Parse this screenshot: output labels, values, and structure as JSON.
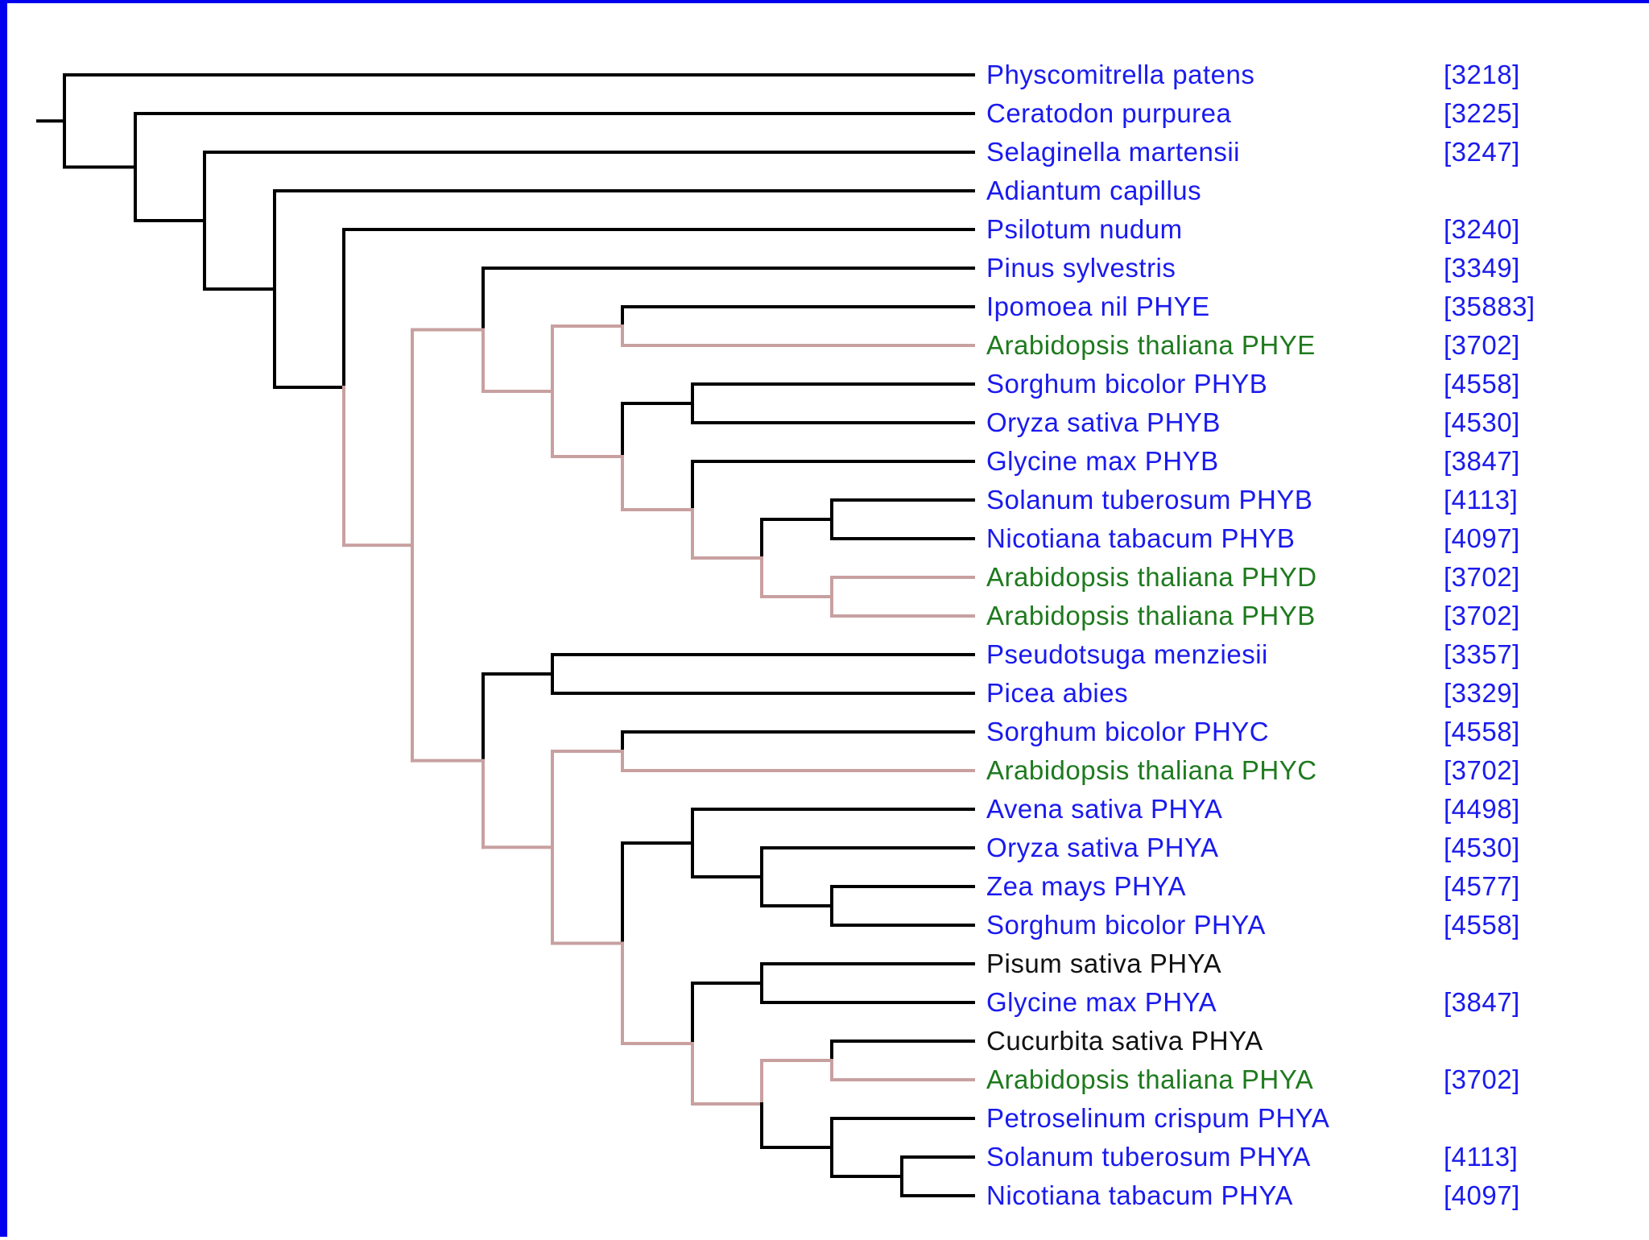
{
  "colors": {
    "frame": "#0000ee",
    "branch_default": "#000000",
    "branch_highlight": "#c8a0a0",
    "label_blue": "#1a1aee",
    "label_green": "#1e7a1e",
    "label_black": "#111111"
  },
  "taxa": [
    {
      "name": "Physcomitrella patens",
      "id": "[3218]",
      "color": "blue"
    },
    {
      "name": "Ceratodon purpurea",
      "id": "[3225]",
      "color": "blue"
    },
    {
      "name": "Selaginella martensii",
      "id": "[3247]",
      "color": "blue"
    },
    {
      "name": "Adiantum capillus",
      "id": "",
      "color": "blue"
    },
    {
      "name": "Psilotum nudum",
      "id": "[3240]",
      "color": "blue"
    },
    {
      "name": "Pinus sylvestris",
      "id": "[3349]",
      "color": "blue"
    },
    {
      "name": "Ipomoea nil PHYE",
      "id": "[35883]",
      "color": "blue"
    },
    {
      "name": "Arabidopsis thaliana PHYE",
      "id": "[3702]",
      "color": "green"
    },
    {
      "name": "Sorghum bicolor PHYB",
      "id": "[4558]",
      "color": "blue"
    },
    {
      "name": "Oryza sativa PHYB",
      "id": "[4530]",
      "color": "blue"
    },
    {
      "name": "Glycine max PHYB",
      "id": "[3847]",
      "color": "blue"
    },
    {
      "name": "Solanum tuberosum PHYB",
      "id": "[4113]",
      "color": "blue"
    },
    {
      "name": "Nicotiana tabacum PHYB",
      "id": "[4097]",
      "color": "blue"
    },
    {
      "name": "Arabidopsis thaliana PHYD",
      "id": "[3702]",
      "color": "green"
    },
    {
      "name": "Arabidopsis thaliana PHYB",
      "id": "[3702]",
      "color": "green"
    },
    {
      "name": "Pseudotsuga menziesii",
      "id": "[3357]",
      "color": "blue"
    },
    {
      "name": "Picea abies",
      "id": "[3329]",
      "color": "blue"
    },
    {
      "name": "Sorghum bicolor PHYC",
      "id": "[4558]",
      "color": "blue"
    },
    {
      "name": "Arabidopsis thaliana PHYC",
      "id": "[3702]",
      "color": "green"
    },
    {
      "name": "Avena sativa PHYA",
      "id": "[4498]",
      "color": "blue"
    },
    {
      "name": "Oryza sativa PHYA",
      "id": "[4530]",
      "color": "blue"
    },
    {
      "name": "Zea mays PHYA",
      "id": "[4577]",
      "color": "blue"
    },
    {
      "name": "Sorghum bicolor PHYA",
      "id": "[4558]",
      "color": "blue"
    },
    {
      "name": "Pisum sativa PHYA",
      "id": "",
      "color": "black"
    },
    {
      "name": "Glycine max PHYA",
      "id": "[3847]",
      "color": "blue"
    },
    {
      "name": "Cucurbita sativa PHYA",
      "id": "",
      "color": "black"
    },
    {
      "name": "Arabidopsis thaliana PHYA",
      "id": "[3702]",
      "color": "green"
    },
    {
      "name": "Petroselinum crispum PHYA",
      "id": "",
      "color": "blue"
    },
    {
      "name": "Solanum tuberosum PHYA",
      "id": "[4113]",
      "color": "blue"
    },
    {
      "name": "Nicotiana tabacum PHYA",
      "id": "[4097]",
      "color": "blue"
    }
  ]
}
